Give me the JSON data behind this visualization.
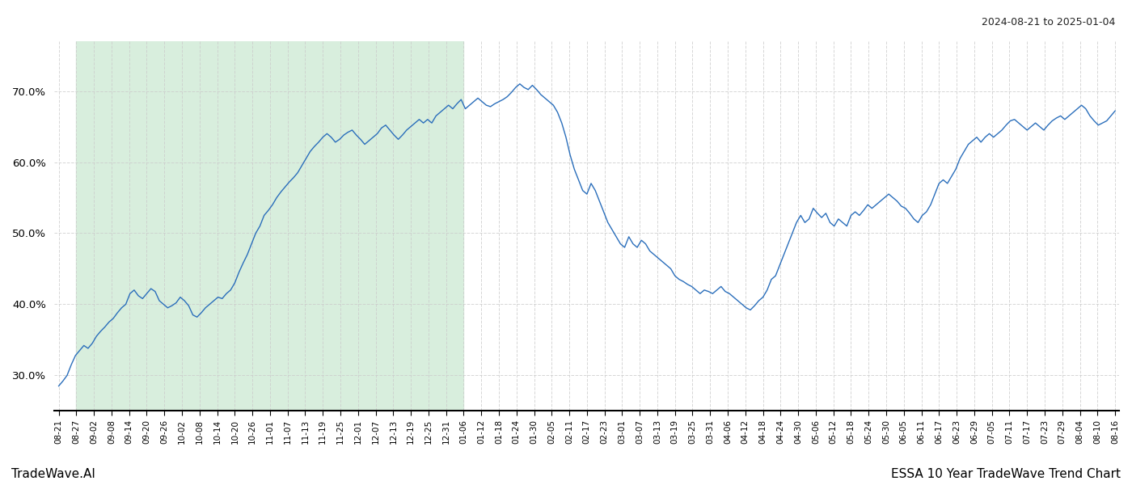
{
  "title_right": "2024-08-21 to 2025-01-04",
  "footer_left": "TradeWave.AI",
  "footer_right": "ESSA 10 Year TradeWave Trend Chart",
  "line_color": "#2a6ebb",
  "shade_color": "#d8eedd",
  "background_color": "#ffffff",
  "grid_color": "#cccccc",
  "ylim": [
    25.0,
    77.0
  ],
  "yticks": [
    30.0,
    40.0,
    50.0,
    60.0,
    70.0
  ],
  "shade_start_label": "08-27",
  "shade_end_label": "01-06",
  "x_labels": [
    "08-21",
    "08-27",
    "09-02",
    "09-08",
    "09-14",
    "09-20",
    "09-26",
    "10-02",
    "10-08",
    "10-14",
    "10-20",
    "10-26",
    "11-01",
    "11-07",
    "11-13",
    "11-19",
    "11-25",
    "12-01",
    "12-07",
    "12-13",
    "12-19",
    "12-25",
    "12-31",
    "01-06",
    "01-12",
    "01-18",
    "01-24",
    "01-30",
    "02-05",
    "02-11",
    "02-17",
    "02-23",
    "03-01",
    "03-07",
    "03-13",
    "03-19",
    "03-25",
    "03-31",
    "04-06",
    "04-12",
    "04-18",
    "04-24",
    "04-30",
    "05-06",
    "05-12",
    "05-18",
    "05-24",
    "05-30",
    "06-05",
    "06-11",
    "06-17",
    "06-23",
    "06-29",
    "07-05",
    "07-11",
    "07-17",
    "07-23",
    "07-29",
    "08-04",
    "08-10",
    "08-16"
  ],
  "values": [
    28.5,
    29.2,
    30.0,
    31.5,
    32.8,
    33.5,
    34.2,
    33.8,
    34.5,
    35.5,
    36.2,
    36.8,
    37.5,
    38.0,
    38.8,
    39.5,
    40.0,
    41.5,
    42.0,
    41.2,
    40.8,
    41.5,
    42.2,
    41.8,
    40.5,
    40.0,
    39.5,
    39.8,
    40.2,
    41.0,
    40.5,
    39.8,
    38.5,
    38.2,
    38.8,
    39.5,
    40.0,
    40.5,
    41.0,
    40.8,
    41.5,
    42.0,
    43.0,
    44.5,
    45.8,
    47.0,
    48.5,
    50.0,
    51.0,
    52.5,
    53.2,
    54.0,
    55.0,
    55.8,
    56.5,
    57.2,
    57.8,
    58.5,
    59.5,
    60.5,
    61.5,
    62.2,
    62.8,
    63.5,
    64.0,
    63.5,
    62.8,
    63.2,
    63.8,
    64.2,
    64.5,
    63.8,
    63.2,
    62.5,
    63.0,
    63.5,
    64.0,
    64.8,
    65.2,
    64.5,
    63.8,
    63.2,
    63.8,
    64.5,
    65.0,
    65.5,
    66.0,
    65.5,
    66.0,
    65.5,
    66.5,
    67.0,
    67.5,
    68.0,
    67.5,
    68.2,
    68.8,
    67.5,
    68.0,
    68.5,
    69.0,
    68.5,
    68.0,
    67.8,
    68.2,
    68.5,
    68.8,
    69.2,
    69.8,
    70.5,
    71.0,
    70.5,
    70.2,
    70.8,
    70.2,
    69.5,
    69.0,
    68.5,
    68.0,
    67.0,
    65.5,
    63.5,
    61.0,
    59.0,
    57.5,
    56.0,
    55.5,
    57.0,
    56.0,
    54.5,
    53.0,
    51.5,
    50.5,
    49.5,
    48.5,
    48.0,
    49.5,
    48.5,
    48.0,
    49.0,
    48.5,
    47.5,
    47.0,
    46.5,
    46.0,
    45.5,
    45.0,
    44.0,
    43.5,
    43.2,
    42.8,
    42.5,
    42.0,
    41.5,
    42.0,
    41.8,
    41.5,
    42.0,
    42.5,
    41.8,
    41.5,
    41.0,
    40.5,
    40.0,
    39.5,
    39.2,
    39.8,
    40.5,
    41.0,
    42.0,
    43.5,
    44.0,
    45.5,
    47.0,
    48.5,
    50.0,
    51.5,
    52.5,
    51.5,
    52.0,
    53.5,
    52.8,
    52.2,
    52.8,
    51.5,
    51.0,
    52.0,
    51.5,
    51.0,
    52.5,
    53.0,
    52.5,
    53.2,
    54.0,
    53.5,
    54.0,
    54.5,
    55.0,
    55.5,
    55.0,
    54.5,
    53.8,
    53.5,
    52.8,
    52.0,
    51.5,
    52.5,
    53.0,
    54.0,
    55.5,
    57.0,
    57.5,
    57.0,
    58.0,
    59.0,
    60.5,
    61.5,
    62.5,
    63.0,
    63.5,
    62.8,
    63.5,
    64.0,
    63.5,
    64.0,
    64.5,
    65.2,
    65.8,
    66.0,
    65.5,
    65.0,
    64.5,
    65.0,
    65.5,
    65.0,
    64.5,
    65.2,
    65.8,
    66.2,
    66.5,
    66.0,
    66.5,
    67.0,
    67.5,
    68.0,
    67.5,
    66.5,
    65.8,
    65.2,
    65.5,
    65.8,
    66.5,
    67.2
  ]
}
